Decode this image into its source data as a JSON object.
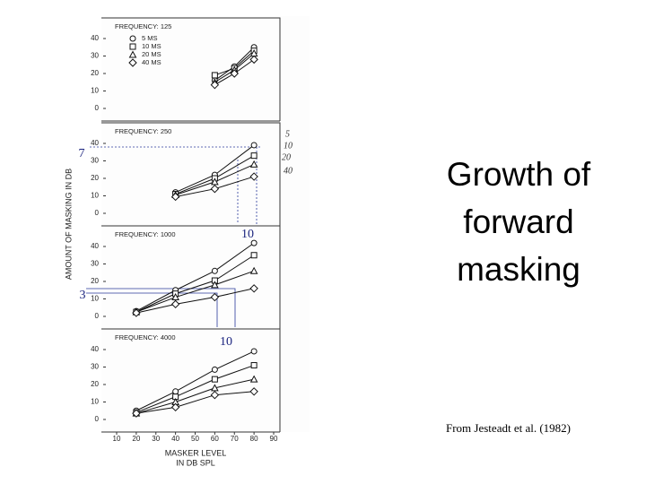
{
  "slide": {
    "title": "Growth of forward masking",
    "source": "From Jesteadt et al. (1982)"
  },
  "figure": {
    "ylabel": "AMOUNT OF MASKING IN DB",
    "xlabel": [
      "MASKER LEVEL",
      "IN DB SPL"
    ],
    "annotations": [
      "7",
      "10",
      "3",
      "10"
    ],
    "handwritten": [
      "5",
      "10",
      "20",
      "40"
    ]
  },
  "chart_data": [
    {
      "type": "line",
      "title": "FREQUENCY: 125",
      "legend": "top-left",
      "x": [
        60,
        70,
        80
      ],
      "xlim": [
        10,
        90
      ],
      "ylim": [
        0,
        40
      ],
      "yticks": [
        0,
        10,
        20,
        30,
        40
      ],
      "series": [
        {
          "name": "5 MS",
          "marker": "circle",
          "color": "#111111",
          "values": [
            16,
            24,
            35
          ]
        },
        {
          "name": "10 MS",
          "marker": "square",
          "color": "#111111",
          "values": [
            19,
            23,
            33
          ]
        },
        {
          "name": "20 MS",
          "marker": "triangle",
          "color": "#111111",
          "values": [
            15,
            22,
            31.5
          ]
        },
        {
          "name": "40 MS",
          "marker": "diamond",
          "color": "#111111",
          "values": [
            13.5,
            20,
            28
          ]
        }
      ]
    },
    {
      "type": "line",
      "title": "FREQUENCY: 250",
      "x": [
        40,
        60,
        80
      ],
      "xlim": [
        10,
        90
      ],
      "ylim": [
        0,
        40
      ],
      "yticks": [
        0,
        10,
        20,
        30,
        40
      ],
      "series": [
        {
          "marker": "circle",
          "color": "#111111",
          "values": [
            12,
            22,
            39
          ]
        },
        {
          "marker": "square",
          "color": "#111111",
          "values": [
            11,
            20,
            33
          ]
        },
        {
          "marker": "triangle",
          "color": "#111111",
          "values": [
            10.5,
            18,
            28
          ]
        },
        {
          "marker": "diamond",
          "color": "#111111",
          "values": [
            9.5,
            14,
            21
          ]
        }
      ]
    },
    {
      "type": "line",
      "title": "FREQUENCY: 1000",
      "x": [
        20,
        40,
        60,
        80
      ],
      "xlim": [
        10,
        90
      ],
      "ylim": [
        0,
        45
      ],
      "yticks": [
        0,
        10,
        20,
        30,
        40
      ],
      "series": [
        {
          "marker": "circle",
          "color": "#111111",
          "values": [
            3,
            15,
            26,
            42
          ]
        },
        {
          "marker": "square",
          "color": "#111111",
          "values": [
            2.5,
            13,
            20.5,
            35
          ]
        },
        {
          "marker": "triangle",
          "color": "#111111",
          "values": [
            2.5,
            11,
            18,
            26
          ]
        },
        {
          "marker": "diamond",
          "color": "#111111",
          "values": [
            2,
            7,
            11,
            16
          ]
        }
      ]
    },
    {
      "type": "line",
      "title": "FREQUENCY: 4000",
      "x": [
        20,
        40,
        60,
        80
      ],
      "xlim": [
        10,
        90
      ],
      "ylim": [
        0,
        40
      ],
      "yticks": [
        0,
        10,
        20,
        30,
        40
      ],
      "xticks": [
        10,
        20,
        30,
        40,
        50,
        60,
        70,
        80,
        90
      ],
      "series": [
        {
          "marker": "circle",
          "color": "#111111",
          "values": [
            5,
            16,
            28.5,
            39
          ]
        },
        {
          "marker": "square",
          "color": "#111111",
          "values": [
            4,
            13,
            23,
            31
          ]
        },
        {
          "marker": "triangle",
          "color": "#111111",
          "values": [
            3.5,
            10,
            18,
            23
          ]
        },
        {
          "marker": "diamond",
          "color": "#111111",
          "values": [
            3.5,
            7,
            14,
            16
          ]
        }
      ]
    }
  ]
}
